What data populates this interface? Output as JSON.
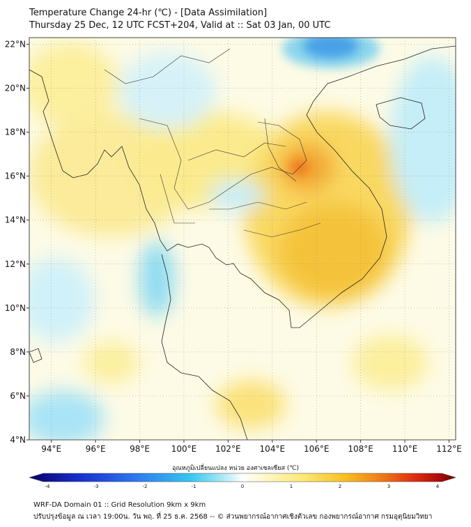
{
  "header": {
    "title_line1": "Temperature Change 24-hr (℃) - [Data Assimilation]",
    "title_line2": "Thursday 25 Dec, 12 UTC FCST+204, Valid at :: Sat 03 Jan, 00 UTC"
  },
  "map": {
    "lat_ticks": [
      "22°N",
      "20°N",
      "18°N",
      "16°N",
      "14°N",
      "12°N",
      "10°N",
      "8°N",
      "6°N",
      "4°N"
    ],
    "lon_ticks": [
      "94°E",
      "96°E",
      "98°E",
      "100°E",
      "102°E",
      "104°E",
      "106°E",
      "108°E",
      "110°E",
      "112°E"
    ],
    "lat_range": [
      4,
      22.3
    ],
    "lon_range": [
      93,
      112.3
    ]
  },
  "colorbar": {
    "label": "อุณหภูมิเปลี่ยนแปลง หน่วย องศาเซลเซียส (℃)",
    "ticks": [
      "-4",
      "-3",
      "-2",
      "-1",
      "0",
      "1",
      "2",
      "3",
      "4"
    ],
    "range": [
      -4,
      4
    ],
    "colors": [
      "#08006b",
      "#1a2fd0",
      "#2f7ef0",
      "#36c8ef",
      "#c8f0f8",
      "#ffffff",
      "#fff7c0",
      "#fde878",
      "#f8c020",
      "#f08018",
      "#e03010",
      "#b00a0a",
      "#6a0000"
    ]
  },
  "footer": {
    "line1": "WRF-DA Domain 01 :: Grid Resolution 9km x 9km",
    "line2": "ปรับปรุงข้อมูล ณ เวลา 19:00น. วัน พฤ. ที่ 25 ธ.ค. 2568 -- © ส่วนพยากรณ์อากาศเชิงตัวเลข กองพยากรณ์อากาศ กรมอุตุนิยมวิทยา"
  }
}
